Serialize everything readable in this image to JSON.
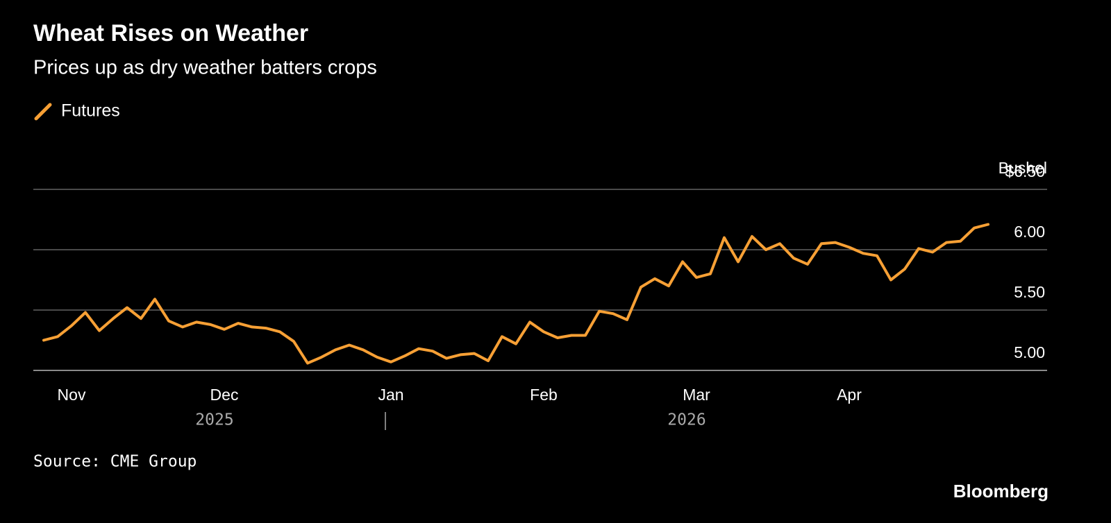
{
  "chart_data": {
    "type": "line",
    "title": "Wheat Rises on Weather",
    "subtitle": "Prices up as dry weather batters crops",
    "y_axis_label": "Bushel",
    "categories": [
      null,
      null,
      "Nov",
      null,
      null,
      null,
      null,
      null,
      null,
      null,
      null,
      null,
      null,
      "Dec",
      null,
      null,
      null,
      null,
      null,
      null,
      null,
      null,
      null,
      null,
      null,
      "Jan",
      null,
      null,
      null,
      null,
      null,
      null,
      null,
      null,
      null,
      null,
      "Feb",
      null,
      null,
      null,
      null,
      null,
      null,
      null,
      null,
      null,
      null,
      "Mar",
      null,
      null,
      null,
      null,
      null,
      null,
      null,
      null,
      null,
      null,
      "Apr",
      null,
      null,
      null,
      null,
      null,
      null,
      null,
      null,
      null,
      null
    ],
    "year_labels": [
      "2025",
      "2026"
    ],
    "series": [
      {
        "name": "Futures",
        "color": "#f7a035",
        "values": [
          5.25,
          5.28,
          5.37,
          5.48,
          5.33,
          5.43,
          5.52,
          5.43,
          5.59,
          5.41,
          5.36,
          5.4,
          5.38,
          5.34,
          5.39,
          5.36,
          5.35,
          5.32,
          5.24,
          5.06,
          5.11,
          5.17,
          5.21,
          5.17,
          5.11,
          5.07,
          5.12,
          5.18,
          5.16,
          5.1,
          5.13,
          5.14,
          5.08,
          5.28,
          5.22,
          5.4,
          5.32,
          5.27,
          5.29,
          5.29,
          5.49,
          5.47,
          5.42,
          5.69,
          5.76,
          5.7,
          5.9,
          5.77,
          5.8,
          6.1,
          5.9,
          6.11,
          6.0,
          6.05,
          5.93,
          5.88,
          6.05,
          6.06,
          6.02,
          5.97,
          5.95,
          5.75,
          5.84,
          6.01,
          5.98,
          6.06,
          6.07,
          6.18,
          6.21
        ]
      }
    ],
    "ylim": [
      5.0,
      6.5
    ],
    "yticks": [
      {
        "value": 5.0,
        "label": "5.00"
      },
      {
        "value": 5.5,
        "label": "5.50"
      },
      {
        "value": 6.0,
        "label": "6.00"
      },
      {
        "value": 6.5,
        "label": "$6.50"
      }
    ],
    "grid": true,
    "legend": "top-left",
    "source": "Source: CME Group",
    "brand": "Bloomberg"
  }
}
